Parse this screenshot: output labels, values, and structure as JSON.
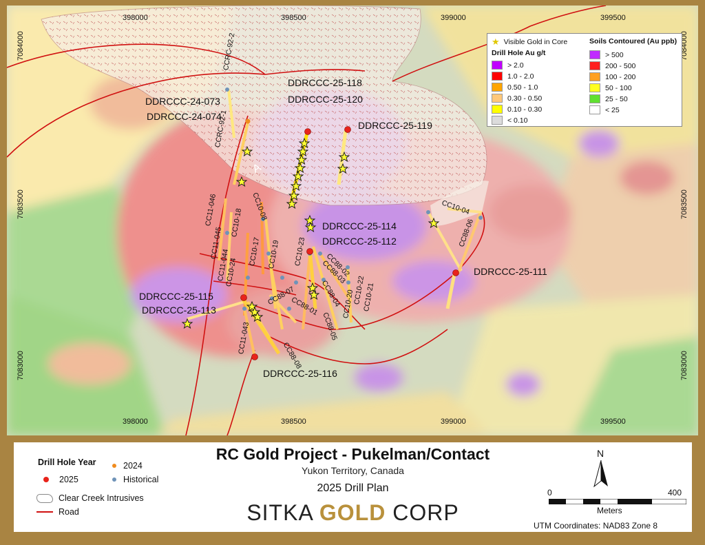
{
  "map": {
    "grid_top": [
      "398000",
      "398500",
      "399000",
      "399500"
    ],
    "grid_bottom": [
      "398000",
      "398500",
      "399000",
      "399500"
    ],
    "grid_left": [
      "7084000",
      "7083500",
      "7083000"
    ],
    "grid_right": [
      "7084000",
      "7083500",
      "7083000"
    ],
    "holes_2025": [
      "DDRCCC-25-118",
      "DDRCCC-25-120",
      "DDRCCC-25-119",
      "DDRCCC-25-114",
      "DDRCCC-25-112",
      "DDRCCC-25-111",
      "DDRCCC-25-115",
      "DDRCCC-25-113",
      "DDRCCC-25-116"
    ],
    "holes_2024": [
      "DDRCCC-24-073",
      "DDRCCC-24-074"
    ],
    "historical": [
      "CCRC-92-2",
      "CCRC-92-1",
      "CC11-046",
      "CC11-045",
      "CC11-044",
      "CC10-18",
      "CC10-08",
      "CC10-17",
      "CC10-19",
      "CC10-24",
      "CC10-23",
      "CC88-02",
      "CC88-03",
      "CC88-04",
      "CC10-22",
      "CC10-21",
      "CC10-20",
      "CC88-05",
      "CC88-01",
      "CC88-07",
      "CC11-043",
      "CC88-08",
      "CC10-04",
      "CC88-06"
    ],
    "intrusive_label": "A"
  },
  "legend": {
    "visible_gold": "Visible Gold in Core",
    "drill_title": "Drill Hole Au g/t",
    "drill_classes": [
      {
        "label": "> 2.0",
        "color": "#c000ff"
      },
      {
        "label": "1.0 - 2.0",
        "color": "#ff0000"
      },
      {
        "label": "0.50 - 1.0",
        "color": "#ffa500"
      },
      {
        "label": "0.30 - 0.50",
        "color": "#ffc87a"
      },
      {
        "label": "0.10 - 0.30",
        "color": "#ffff00"
      },
      {
        "label": "< 0.10",
        "color": "#dcdcdc"
      }
    ],
    "soil_title": "Soils Contoured (Au ppb)",
    "soil_classes": [
      {
        "label": "> 500",
        "color": "#c02cff"
      },
      {
        "label": "200 - 500",
        "color": "#ff2020"
      },
      {
        "label": "100 - 200",
        "color": "#ffa020"
      },
      {
        "label": "50 - 100",
        "color": "#ffff20"
      },
      {
        "label": "25 - 50",
        "color": "#60e030"
      },
      {
        "label": "< 25",
        "color": "#ffffff"
      }
    ]
  },
  "title": {
    "main": "RC Gold Project - Pukelman/Contact",
    "sub": "Yukon Territory, Canada",
    "plan": "2025 Drill Plan",
    "logo_a": "SITKA ",
    "logo_b": "GOLD",
    "logo_c": " CORP"
  },
  "bottom_legend": {
    "year_title": "Drill Hole Year",
    "y2024": "2024",
    "y2025": "2025",
    "historical": "Historical",
    "intrusives": "Clear Creek Intrusives",
    "road": "Road",
    "colors": {
      "y2025": "#e8231b",
      "y2024": "#f08c1e",
      "historical": "#6f93b8",
      "road": "#d01010"
    }
  },
  "scale": {
    "north": "N",
    "zero": "0",
    "max": "400",
    "units": "Meters",
    "utm": "UTM Coordinates: NAD83 Zone 8"
  }
}
